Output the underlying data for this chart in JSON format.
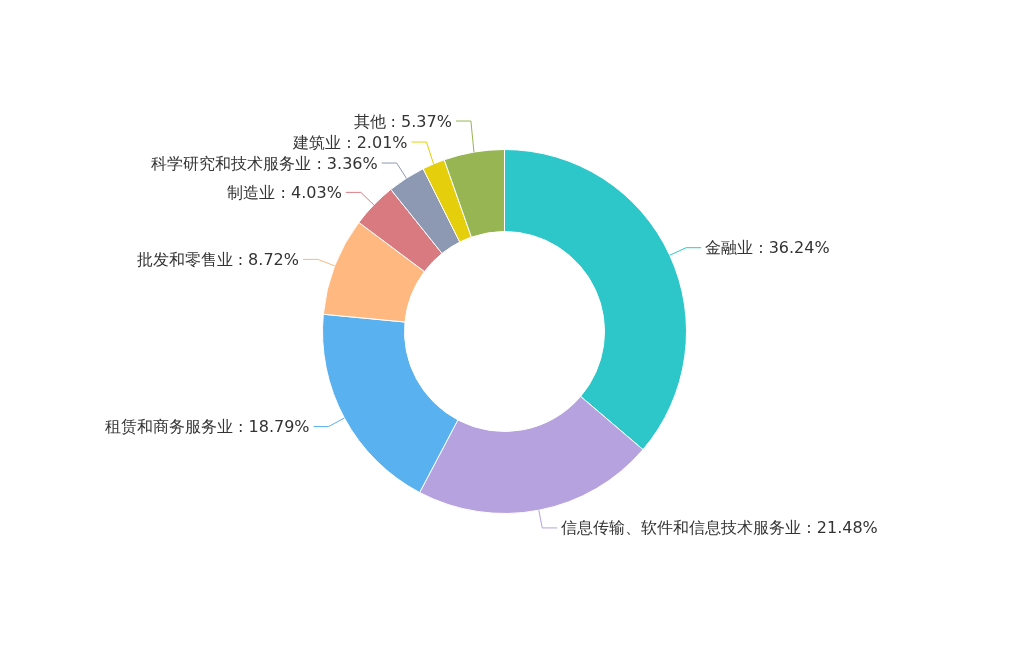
{
  "chart_data": {
    "type": "donut",
    "categories": [
      "金融业",
      "信息传输、软件和信息技术服务业",
      "租赁和商务服务业",
      "批发和零售业",
      "制造业",
      "科学研究和技术服务业",
      "建筑业",
      "其他"
    ],
    "values": [
      36.24,
      21.48,
      18.79,
      8.72,
      4.03,
      3.36,
      2.01,
      5.37
    ],
    "value_labels": [
      "36.24%",
      "21.48%",
      "18.79%",
      "8.72%",
      "4.03%",
      "3.36%",
      "2.01%",
      "5.37%"
    ],
    "colors": [
      "#2ec7c9",
      "#b6a2de",
      "#5ab1ef",
      "#ffb980",
      "#d87a80",
      "#8d98b3",
      "#e5cf0d",
      "#97b552"
    ]
  }
}
